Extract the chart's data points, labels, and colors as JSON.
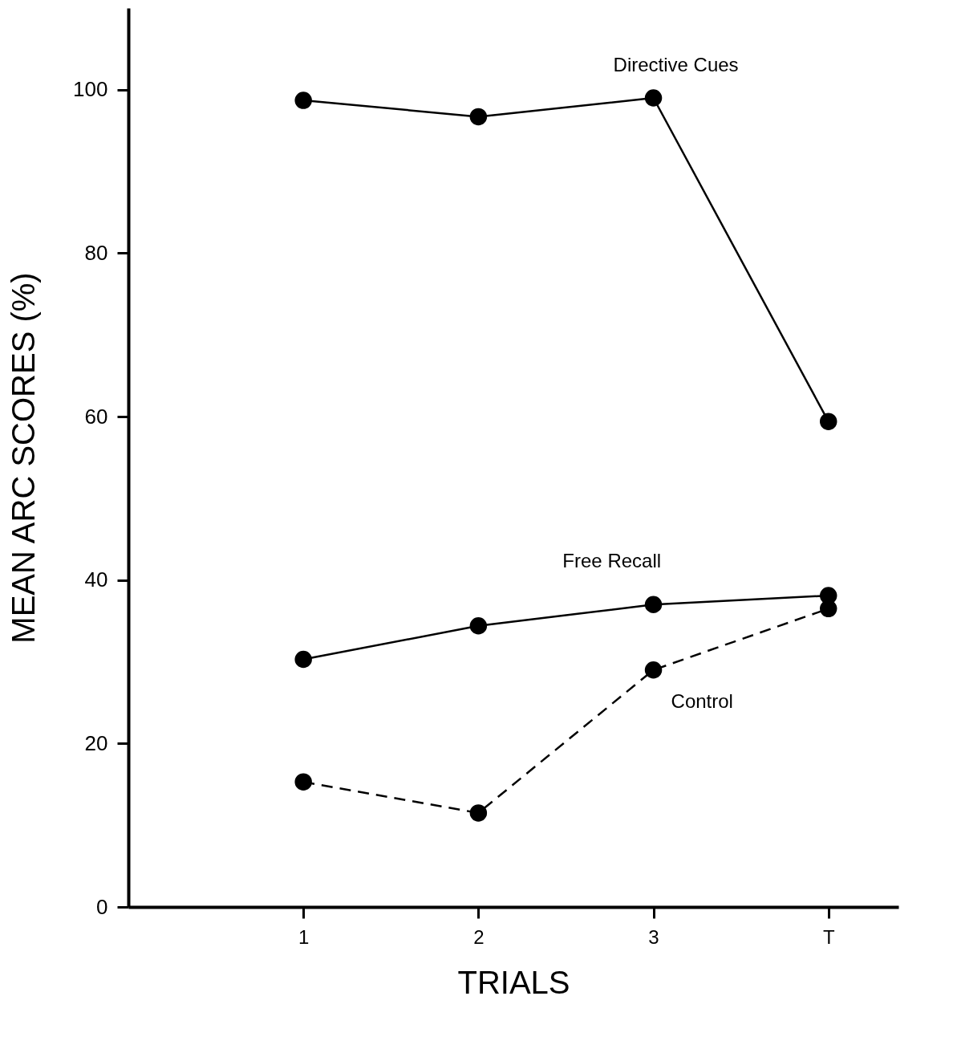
{
  "chart_data": {
    "type": "line",
    "xlabel": "TRIALS",
    "ylabel": "MEAN  ARC  SCORES  (%)",
    "categories": [
      "1",
      "2",
      "3",
      "T"
    ],
    "series": [
      {
        "name": "Directive Cues",
        "color": "#000000",
        "line_style": "solid",
        "values": [
          98.7,
          96.7,
          99,
          59.4
        ]
      },
      {
        "name": "Free Recall",
        "color": "#000000",
        "line_style": "solid",
        "values": [
          30.3,
          34.4,
          37,
          38.1
        ]
      },
      {
        "name": "Control",
        "color": "#000000",
        "line_style": "dashed",
        "values": [
          15.3,
          11.5,
          29,
          36.5
        ]
      }
    ],
    "ylim": [
      0,
      110
    ],
    "yticks": [
      0,
      20,
      40,
      60,
      80,
      100
    ],
    "grid": false,
    "marker": "circle"
  }
}
